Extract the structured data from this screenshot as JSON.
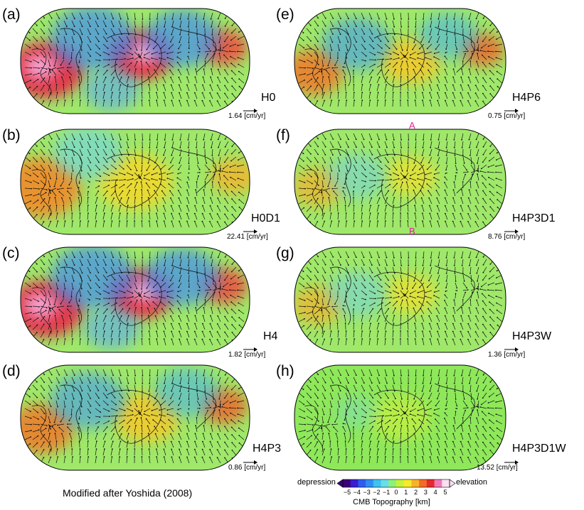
{
  "panels": [
    {
      "letter": "(a)",
      "model": "H0",
      "velocity": "1.64 [cm/yr]",
      "theme": "strong"
    },
    {
      "letter": "(b)",
      "model": "H0D1",
      "velocity": "22.41 [cm/yr]",
      "theme": "warm"
    },
    {
      "letter": "(c)",
      "model": "H4",
      "velocity": "1.82 [cm/yr]",
      "theme": "strong"
    },
    {
      "letter": "(d)",
      "model": "H4P3",
      "velocity": "0.86 [cm/yr]",
      "theme": "mixed"
    },
    {
      "letter": "(e)",
      "model": "H4P6",
      "velocity": "0.75 [cm/yr]",
      "theme": "mixed"
    },
    {
      "letter": "(f)",
      "model": "H4P3D1",
      "velocity": "8.76 [cm/yr]",
      "theme": "mild"
    },
    {
      "letter": "(g)",
      "model": "H4P3W",
      "velocity": "1.36 [cm/yr]",
      "theme": "mild"
    },
    {
      "letter": "(h)",
      "model": "H4P3D1W",
      "velocity": "13.52 [cm/yr]",
      "theme": "flat"
    }
  ],
  "pins": {
    "top": "A",
    "bottom": "B"
  },
  "caption": "Modified after Yoshida (2008)",
  "legend": {
    "left_label": "depression",
    "right_label": "elevation",
    "title": "CMB Topography [km]",
    "ticks": [
      "−5",
      "−4",
      "−3",
      "−2",
      "−1",
      "0",
      "1",
      "2",
      "3",
      "4",
      "5"
    ],
    "colors": [
      "#3b0078",
      "#3a1fd0",
      "#2f5cf0",
      "#2f8ef2",
      "#3fc2ef",
      "#69dde8",
      "#8ef078",
      "#c6f23a",
      "#f6ea2a",
      "#f8b22a",
      "#f46a2a",
      "#e42a2a",
      "#f07ab8",
      "#fbe0f0"
    ]
  }
}
